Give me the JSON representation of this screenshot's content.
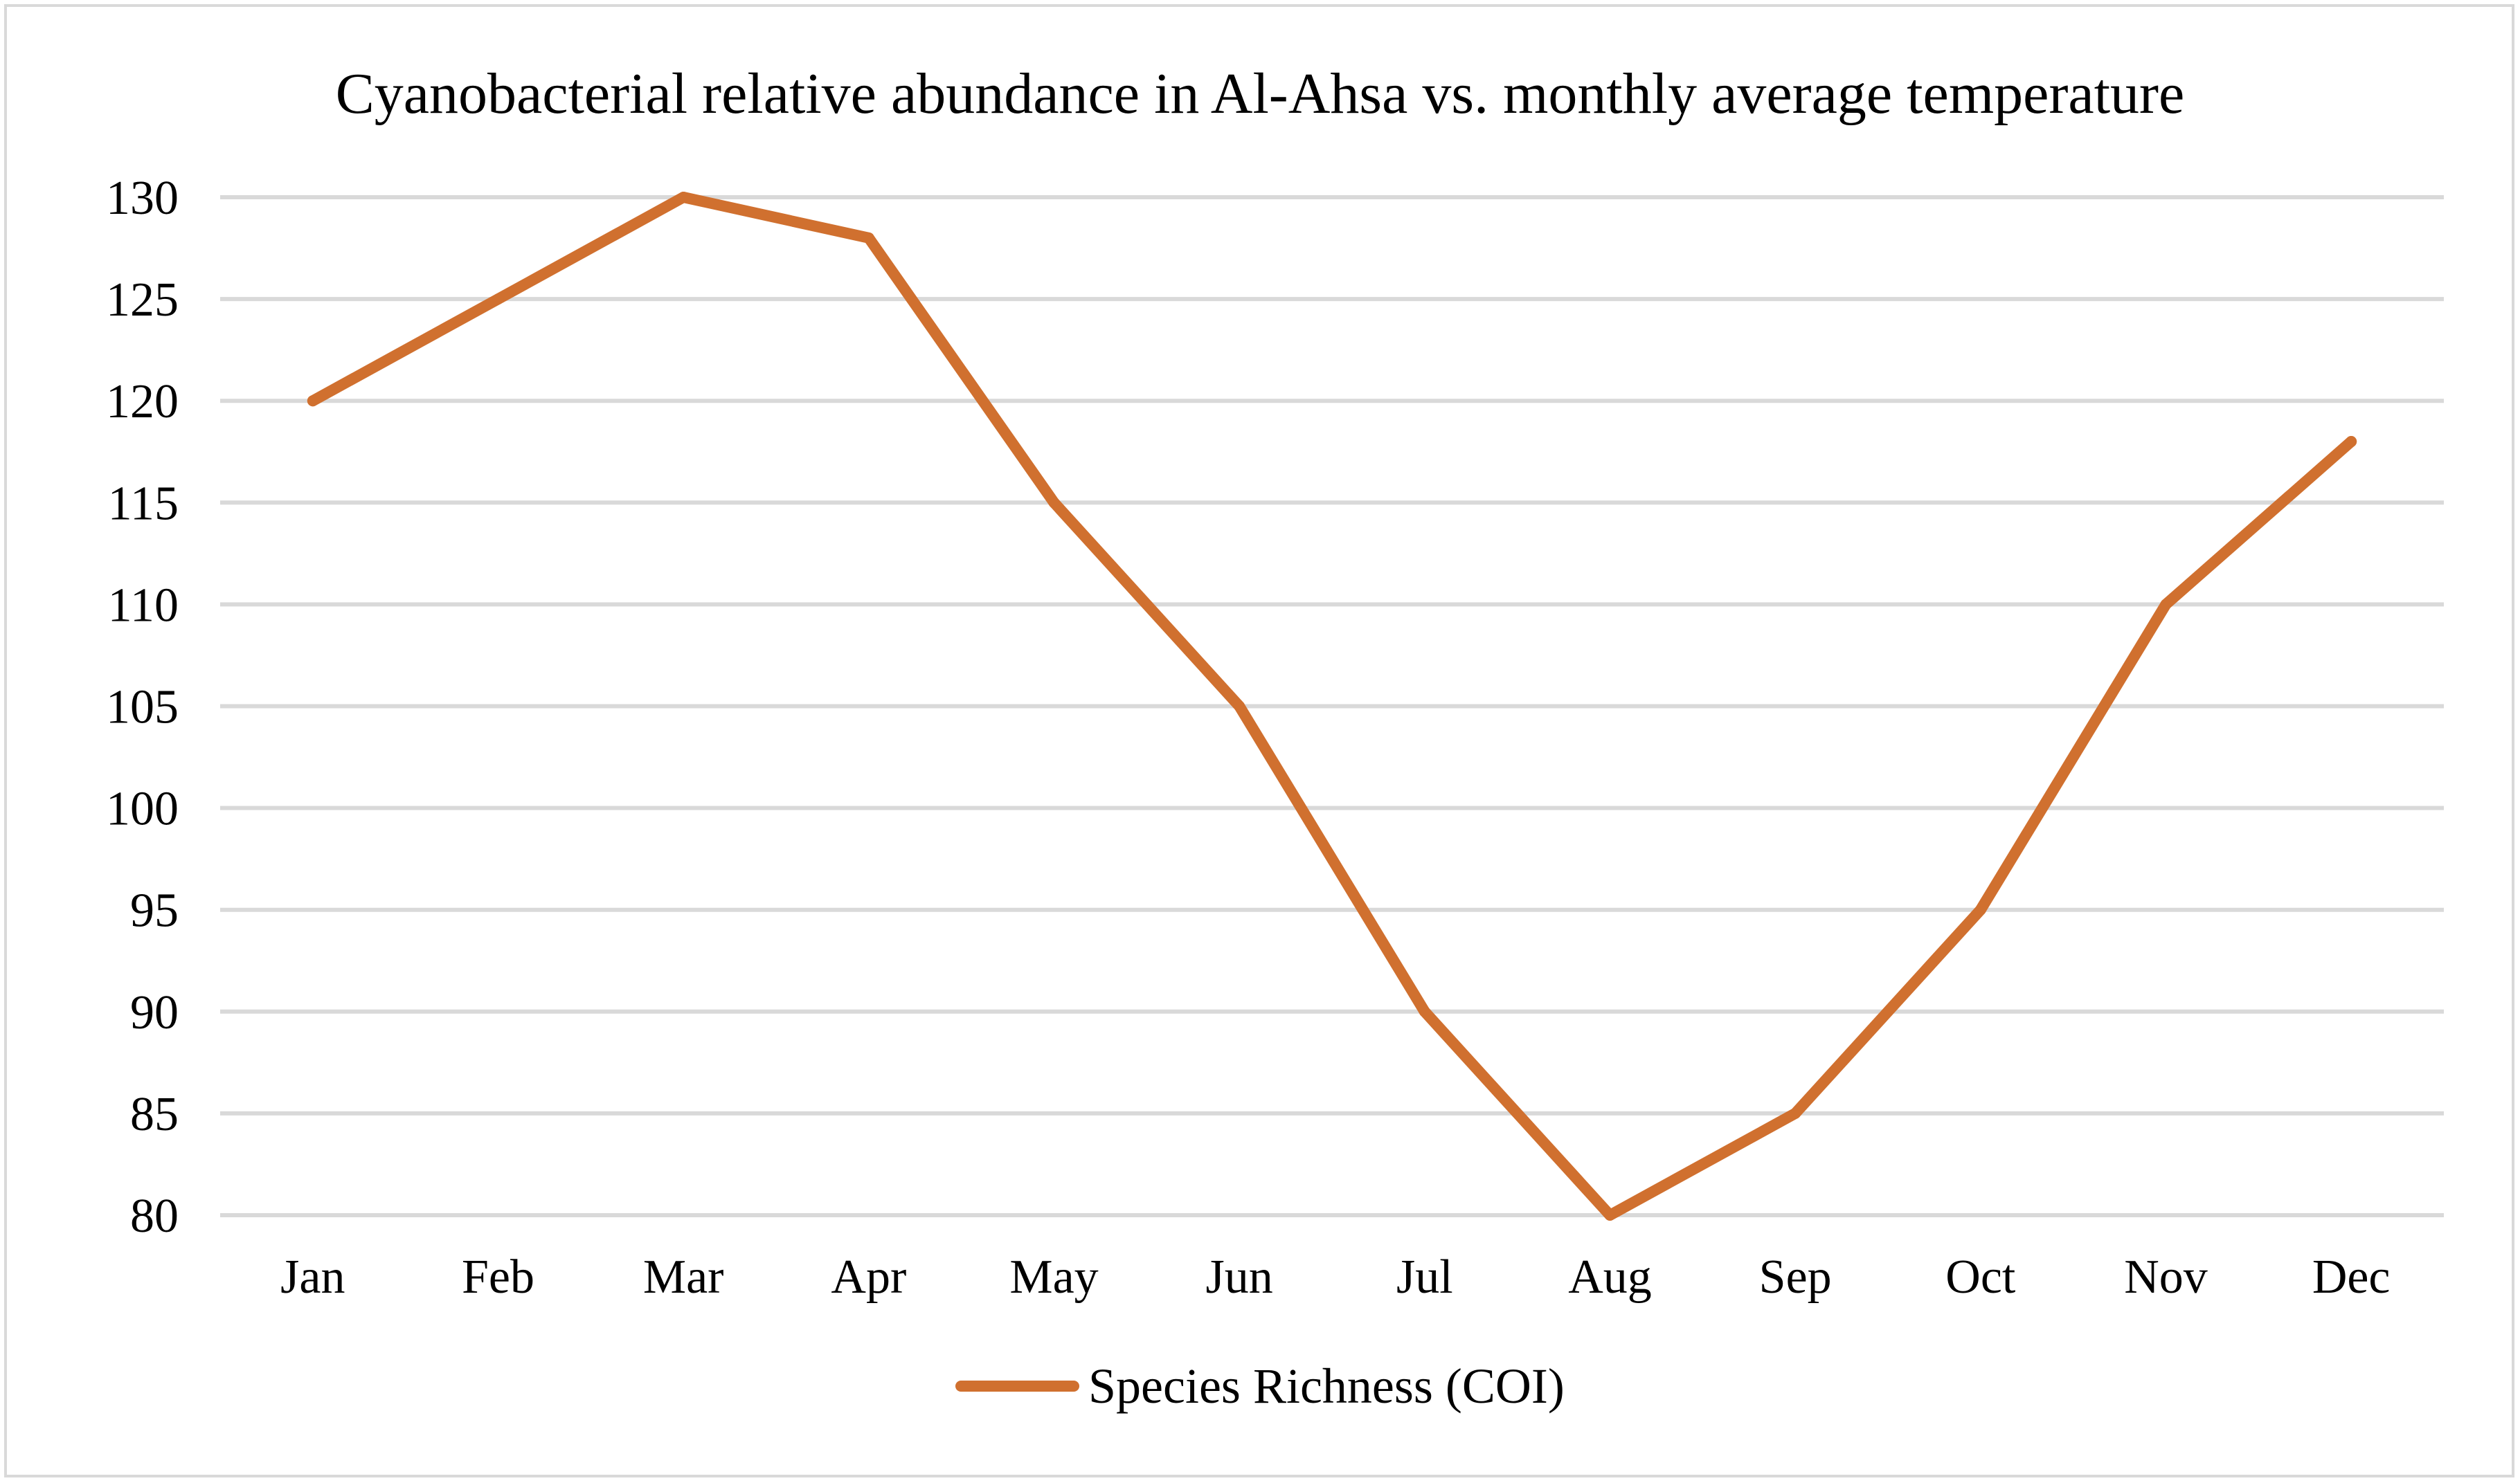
{
  "chart_data": {
    "type": "line",
    "title": "Cyanobacterial relative abundance in Al-Ahsa vs. monthly average temperature",
    "categories": [
      "Jan",
      "Feb",
      "Mar",
      "Apr",
      "May",
      "Jun",
      "Jul",
      "Aug",
      "Sep",
      "Oct",
      "Nov",
      "Dec"
    ],
    "series": [
      {
        "name": "Species Richness (COI)",
        "values": [
          120,
          125,
          130,
          128,
          115,
          105,
          90,
          80,
          85,
          95,
          110,
          118
        ],
        "color": "#d0702f"
      }
    ],
    "ylim": [
      80,
      130
    ],
    "yticks": [
      130,
      125,
      120,
      115,
      110,
      105,
      100,
      95,
      90,
      85,
      80
    ],
    "xlabel": "",
    "ylabel": "",
    "grid": true,
    "legend": "bottom-center"
  }
}
